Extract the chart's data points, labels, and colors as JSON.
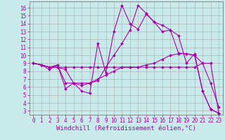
{
  "xlabel": "Windchill (Refroidissement éolien,°C)",
  "bg_color": "#c8eaea",
  "line_color": "#aa00aa",
  "grid_color": "#aaaaaa",
  "spine_color": "#666666",
  "xlim": [
    -0.5,
    23.5
  ],
  "ylim": [
    2.5,
    16.8
  ],
  "xticks": [
    0,
    1,
    2,
    3,
    4,
    5,
    6,
    7,
    8,
    9,
    10,
    11,
    12,
    13,
    14,
    15,
    16,
    17,
    18,
    19,
    20,
    21,
    22,
    23
  ],
  "yticks": [
    3,
    4,
    5,
    6,
    7,
    8,
    9,
    10,
    11,
    12,
    13,
    14,
    15,
    16
  ],
  "series": [
    {
      "x": [
        0,
        1,
        2,
        3,
        4,
        5,
        6,
        7,
        8,
        9,
        10,
        11,
        12,
        13,
        14,
        15,
        16,
        17,
        18,
        19,
        20,
        21,
        22,
        23
      ],
      "y": [
        9.0,
        8.8,
        8.5,
        8.5,
        8.5,
        8.5,
        8.5,
        8.5,
        8.5,
        8.5,
        8.5,
        8.5,
        8.5,
        8.5,
        8.5,
        8.5,
        8.5,
        8.5,
        8.5,
        8.5,
        8.5,
        9.0,
        9.0,
        2.7
      ]
    },
    {
      "x": [
        0,
        1,
        2,
        3,
        4,
        5,
        6,
        7,
        8,
        9,
        10,
        11,
        12,
        13,
        14,
        15,
        16,
        17,
        18,
        19,
        20,
        21,
        22,
        23
      ],
      "y": [
        9.0,
        8.8,
        8.5,
        8.5,
        8.2,
        6.5,
        6.5,
        6.5,
        7.0,
        7.5,
        8.0,
        8.5,
        8.5,
        8.5,
        8.8,
        9.0,
        9.5,
        10.0,
        10.2,
        10.2,
        10.0,
        9.0,
        6.5,
        3.5
      ]
    },
    {
      "x": [
        0,
        1,
        2,
        3,
        4,
        5,
        6,
        7,
        8,
        9,
        10,
        11,
        12,
        13,
        14,
        15,
        16,
        17,
        18,
        19,
        20,
        21,
        22,
        23
      ],
      "y": [
        9.0,
        8.8,
        8.5,
        8.8,
        6.5,
        6.5,
        6.2,
        6.5,
        6.8,
        8.5,
        10.0,
        11.5,
        13.2,
        16.3,
        15.3,
        14.2,
        13.0,
        13.2,
        12.5,
        9.0,
        10.2,
        5.5,
        3.2,
        2.7
      ]
    },
    {
      "x": [
        0,
        1,
        2,
        3,
        4,
        5,
        6,
        7,
        8,
        9,
        10,
        11,
        12,
        13,
        14,
        15,
        16,
        17,
        18,
        19,
        20,
        21,
        22,
        23
      ],
      "y": [
        9.0,
        8.8,
        8.2,
        8.8,
        5.8,
        6.5,
        5.5,
        5.2,
        11.5,
        7.8,
        13.0,
        16.3,
        14.0,
        13.3,
        15.2,
        14.2,
        13.8,
        13.2,
        10.3,
        10.2,
        10.0,
        5.5,
        3.2,
        2.7
      ]
    }
  ],
  "font_size_tick": 5.5,
  "font_size_label": 6.5,
  "marker": "D",
  "marker_size": 1.8,
  "linewidth": 0.8
}
